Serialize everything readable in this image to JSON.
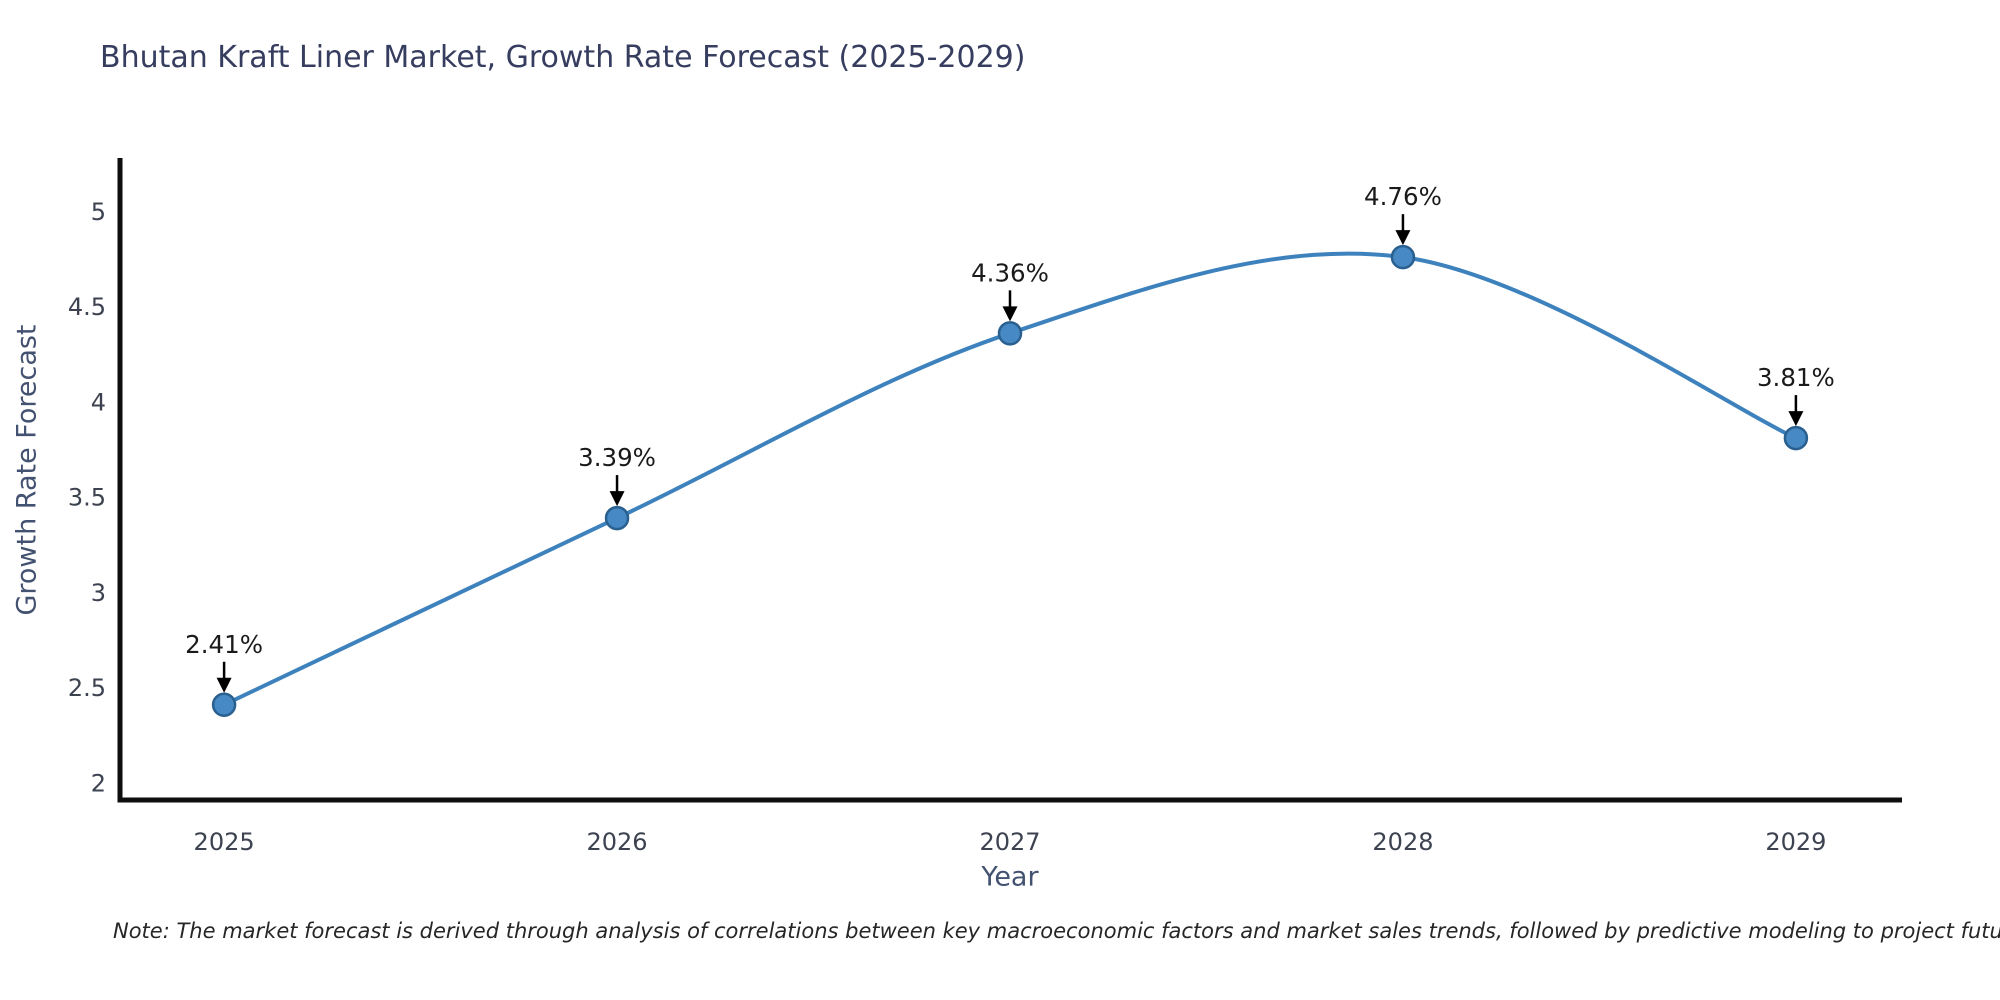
{
  "title": "Bhutan Kraft Liner Market, Growth Rate Forecast (2025-2029)",
  "note": "Note: The market forecast is derived through analysis of correlations between key macroeconomic factors and market sales trends, followed by predictive modeling to project future sales.",
  "chart_data": {
    "type": "line",
    "x": [
      2025,
      2026,
      2027,
      2028,
      2029
    ],
    "values": [
      2.41,
      3.39,
      4.36,
      4.76,
      3.81
    ],
    "point_labels": [
      "2.41%",
      "3.39%",
      "4.36%",
      "4.76%",
      "3.81%"
    ],
    "title": "Bhutan Kraft Liner Market, Growth Rate Forecast (2025-2029)",
    "xlabel": "Year",
    "ylabel": "Growth Rate Forecast",
    "xticks": [
      "2025",
      "2026",
      "2027",
      "2028",
      "2029"
    ],
    "yticks": [
      2,
      2.5,
      3,
      3.5,
      4,
      4.5,
      5
    ],
    "xlim": [
      2024.73,
      2029.27
    ],
    "ylim": [
      1.91,
      5.27
    ],
    "grid": false,
    "legend": null,
    "colors": {
      "line": "#3d82bd",
      "marker_fill": "#4689c4",
      "marker_edge": "#2a608f",
      "annotation_text": "#1a1a1a",
      "annotation_arrow": "#000000",
      "spine": "#0e0e0e",
      "tick_label": "#3c4250",
      "axis_label": "#445271",
      "title": "#363d5f"
    }
  }
}
